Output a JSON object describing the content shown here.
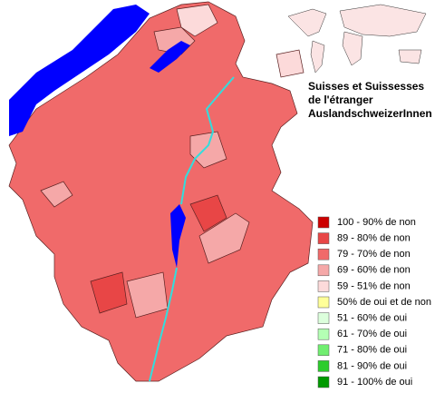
{
  "title_lines": [
    "Suisses et Suissesses",
    "de l'étranger",
    "AuslandschweizerInnen"
  ],
  "legend": [
    {
      "label": "100 - 90% de non",
      "color": "#cc0000"
    },
    {
      "label": "89 - 80% de non",
      "color": "#e84646"
    },
    {
      "label": "79 - 70% de non",
      "color": "#f06a6a"
    },
    {
      "label": "69 - 60% de non",
      "color": "#f5a8a8"
    },
    {
      "label": "59 - 51% de non",
      "color": "#fcdada"
    },
    {
      "label": "50% de oui et de non",
      "color": "#ffff99"
    },
    {
      "label": "51 - 60% de oui",
      "color": "#dcffdc"
    },
    {
      "label": "61 - 70% de oui",
      "color": "#b4ffb4"
    },
    {
      "label": "71 - 80% de oui",
      "color": "#70ee70"
    },
    {
      "label": "81 - 90% de oui",
      "color": "#2ccc2c"
    },
    {
      "label": "91 - 100% de oui",
      "color": "#009900"
    }
  ]
}
